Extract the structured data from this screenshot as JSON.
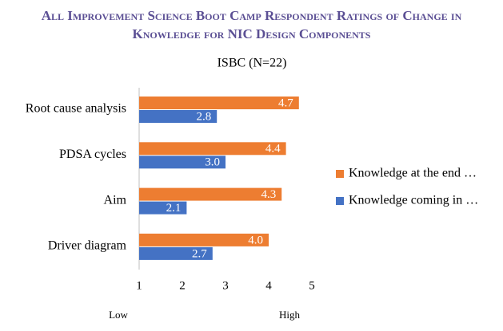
{
  "chart_data": {
    "type": "hbar",
    "title": "All Improvement Science Boot Camp Respondent Ratings of Change in Knowledge for NIC Design Components",
    "subtitle": "ISBC (N=22)",
    "categories": [
      "Root cause analysis",
      "PDSA cycles",
      "Aim",
      "Driver diagram"
    ],
    "series": [
      {
        "name": "Knowledge at the end …",
        "color": "#ED7D31",
        "values": [
          4.7,
          4.4,
          4.3,
          4.0
        ],
        "value_labels": [
          "4.7",
          "4.4",
          "4.3",
          "4.0"
        ]
      },
      {
        "name": "Knowledge coming in …",
        "color": "#4472C4",
        "values": [
          2.8,
          3.0,
          2.1,
          2.7
        ],
        "value_labels": [
          "2.8",
          "3.0",
          "2.1",
          "2.7"
        ]
      }
    ],
    "xlim": [
      1,
      5
    ],
    "xticks": [
      1,
      2,
      3,
      4,
      5
    ],
    "x_low_label": "Low",
    "x_high_label": "High",
    "legend": "right"
  }
}
